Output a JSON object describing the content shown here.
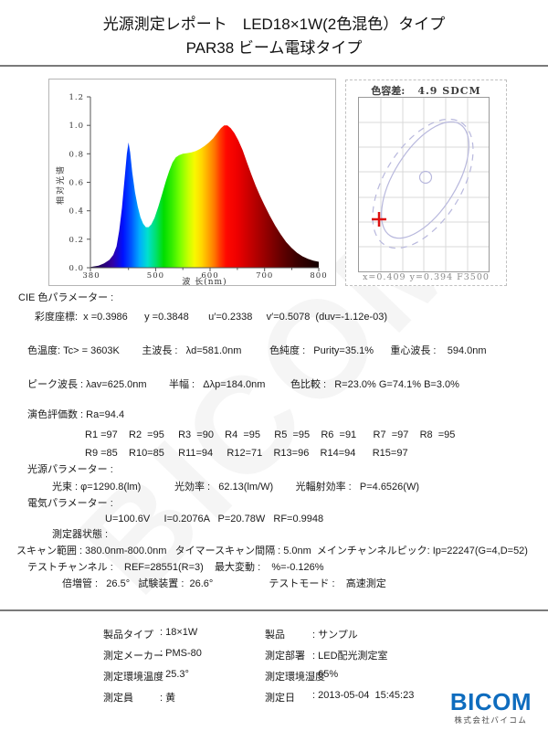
{
  "title": {
    "line1": "光源測定レポート　LED18×1W(2色混色）タイプ",
    "line2": "PAR38  ビーム電球タイプ"
  },
  "watermark_text": "BICOM",
  "spectrum_chart": {
    "y_axis_label": "相对光谱",
    "x_axis_label": "波 长(nm)",
    "y_ticks": [
      "1.2",
      "1.0",
      "0.8",
      "0.6",
      "0.4",
      "0.2",
      "0.0"
    ],
    "x_ticks": [
      "380",
      "500",
      "600",
      "700",
      "800"
    ]
  },
  "chromaticity_chart": {
    "title_label": "色容差:",
    "title_value": "4.9 SDCM",
    "footer": "x=0.409 y=0.394 F3500"
  },
  "cie": {
    "header": "CIE 色パラメーター :",
    "row1": "彩度座標:  x =0.3986      y =0.3848       u′=0.2338     v′=0.5078  (duv=-1.12e-03)",
    "row2": "色温度: Tc> = 3603K        主波長 :   λd=581.0nm          色純度 :   Purity=35.1%      重心波長 :    594.0nm",
    "row3": "ピーク波長 : λav=625.0nm        半幅 :   Δλp=184.0nm         色比較 :   R=23.0% G=74.1% B=3.0%"
  },
  "cri": {
    "header": "演色評価数 : Ra=94.4",
    "row1": "R1 =97    R2  =95     R3  =90    R4  =95     R5  =95    R6  =91      R7  =97    R8  =95",
    "row2": "R9 =85    R10=85     R11=94     R12=71    R13=96    R14=94      R15=97"
  },
  "source_params": {
    "header": "光源パラメーター :",
    "row1": "光束 : φ=1290.8(lm)            光効率 :   62.13(lm/W)        光輻射効率 :   P=4.6526(W)"
  },
  "electrical_params": {
    "header": "電気パラメーター :",
    "row1": "U=100.6V     I=0.2076A   P=20.78W   RF=0.9948"
  },
  "instrument": {
    "header": "測定器状態 :",
    "row1": "スキャン範囲 : 380.0nm-800.0nm   タイマースキャン間隔 : 5.0nm  メインチャンネルピック: Ip=22247(G=4,D=52)",
    "row2": "テストチャンネル :    REF=28551(R=3)    最大変動 :    %=-0.126%",
    "row3": "倍増管 :   26.5°   試験装置 :  26.6°                    テストモード :    高速測定"
  },
  "footer_table": {
    "rows": [
      {
        "l_label": "製品タイプ",
        "l_value": ": 18×1W",
        "r_label": "製品",
        "r_value": ": サンプル"
      },
      {
        "l_label": "測定メーカー",
        "l_value": ": PMS-80",
        "r_label": "測定部署",
        "r_value": ": LED配光測定室"
      },
      {
        "l_label": "測定環境温度",
        "l_value": ": 25.3°",
        "r_label": "測定環境湿度",
        "r_value": ": 65%"
      },
      {
        "l_label": "測定員",
        "l_value": ": 黄",
        "r_label": "測定日",
        "r_value": ": 2013-05-04  15:45:23"
      }
    ]
  },
  "logo": {
    "name": "BICOM",
    "subtitle": "株式会社バイコム"
  },
  "chart_data": [
    {
      "type": "area",
      "title": "LED spectral power distribution",
      "xlabel": "波 长(nm)",
      "ylabel": "相对光谱",
      "xlim": [
        380,
        800
      ],
      "ylim": [
        0,
        1.2
      ],
      "grid": false,
      "x": [
        380,
        395,
        405,
        415,
        422,
        428,
        433,
        438,
        443,
        447,
        450,
        453,
        457,
        462,
        467,
        472,
        477,
        482,
        487,
        492,
        498,
        505,
        512,
        519,
        525,
        531,
        537,
        543,
        550,
        558,
        566,
        574,
        582,
        590,
        598,
        606,
        613,
        620,
        626,
        632,
        638,
        645,
        652,
        660,
        668,
        676,
        684,
        692,
        700,
        710,
        720,
        730,
        740,
        750,
        760,
        770,
        780,
        790,
        800
      ],
      "values": [
        0.005,
        0.015,
        0.03,
        0.055,
        0.09,
        0.15,
        0.26,
        0.42,
        0.63,
        0.8,
        0.88,
        0.81,
        0.67,
        0.53,
        0.43,
        0.355,
        0.31,
        0.285,
        0.285,
        0.305,
        0.35,
        0.43,
        0.52,
        0.61,
        0.68,
        0.74,
        0.775,
        0.79,
        0.8,
        0.805,
        0.81,
        0.82,
        0.835,
        0.855,
        0.88,
        0.91,
        0.945,
        0.98,
        1.0,
        1.0,
        0.98,
        0.945,
        0.895,
        0.825,
        0.74,
        0.655,
        0.575,
        0.505,
        0.44,
        0.365,
        0.295,
        0.235,
        0.18,
        0.14,
        0.105,
        0.08,
        0.062,
        0.05,
        0.042
      ]
    },
    {
      "type": "scatter",
      "title": "色容差: 4.9 SDCM",
      "points": [
        {
          "x": 0.409,
          "y": 0.394
        }
      ],
      "reference": "F3500",
      "color_tolerance_sdcm": 4.9,
      "annotation": "x=0.409 y=0.394 F3500",
      "legend_position": "none"
    }
  ]
}
